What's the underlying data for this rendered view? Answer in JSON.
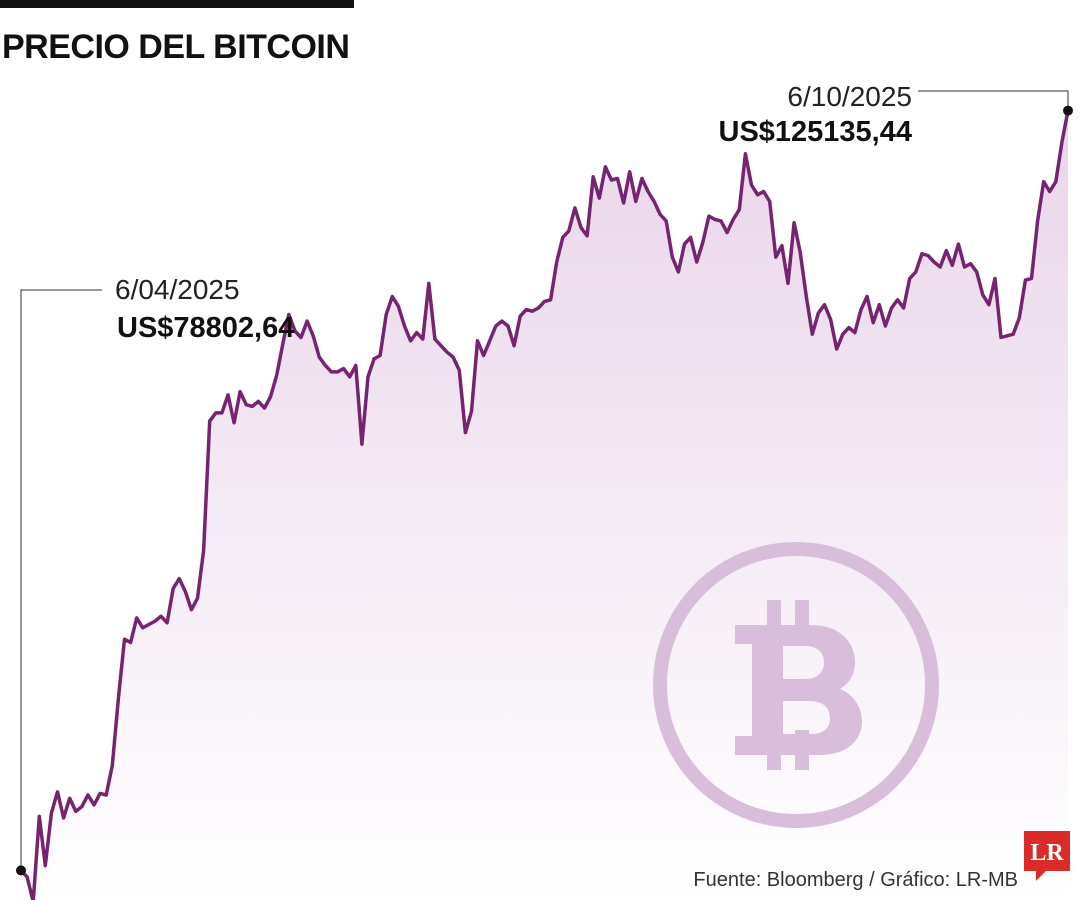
{
  "title": "PRECIO DEL BITCOIN",
  "source": "Fuente: Bloomberg / Gráfico: LR-MB",
  "logo_text": "LR",
  "colors": {
    "line": "#76246f",
    "area_top": "#e9d5ea",
    "area_bottom": "#ffffff",
    "bitcoin_logo": "#d9bedc",
    "logo_red": "#d92b27"
  },
  "annotations": {
    "start": {
      "date": "6/04/2025",
      "value": "US$78802,64"
    },
    "end": {
      "date": "6/10/2025",
      "value": "US$125135,44"
    }
  },
  "chart_data": {
    "type": "area",
    "title": "PRECIO DEL BITCOIN",
    "xlabel": "",
    "ylabel": "",
    "x_range": [
      "6/04/2025",
      "6/10/2025"
    ],
    "ylim": [
      77000,
      127000
    ],
    "grid": false,
    "series": [
      {
        "values": [
          78802.64,
          78400,
          76900,
          82100,
          79100,
          82300,
          83600,
          82000,
          83200,
          82400,
          82700,
          83400,
          82800,
          83500,
          83400,
          85200,
          89300,
          92900,
          92700,
          94200,
          93600,
          93800,
          94000,
          94300,
          93900,
          96000,
          96600,
          95800,
          94700,
          95400,
          98300,
          106200,
          106700,
          106700,
          107800,
          106100,
          108000,
          107200,
          107100,
          107400,
          107000,
          107700,
          109000,
          110900,
          112700,
          111700,
          111300,
          112300,
          111400,
          110100,
          109600,
          109200,
          109200,
          109400,
          108900,
          109600,
          104800,
          108900,
          110000,
          110200,
          112700,
          113800,
          113200,
          112000,
          111100,
          111600,
          111200,
          114600,
          111200,
          110800,
          110400,
          110100,
          109300,
          105500,
          106800,
          111100,
          110200,
          111100,
          112000,
          112300,
          112000,
          110800,
          112600,
          113000,
          112900,
          113100,
          113500,
          113600,
          115900,
          117400,
          117800,
          119200,
          118000,
          117500,
          121100,
          119800,
          121700,
          120900,
          121000,
          119500,
          121400,
          119600,
          121000,
          120200,
          119600,
          118800,
          118400,
          116200,
          115300,
          117000,
          117400,
          115900,
          117100,
          118700,
          118500,
          118400,
          117700,
          118500,
          119100,
          122500,
          120600,
          120000,
          120200,
          119600,
          116200,
          116900,
          114600,
          118300,
          116500,
          113800,
          111500,
          112800,
          113300,
          112400,
          110600,
          111500,
          111900,
          111600,
          113000,
          113800,
          112200,
          113300,
          112000,
          113100,
          113600,
          113100,
          114900,
          115300,
          116400,
          116300,
          115900,
          115600,
          116600,
          115700,
          117000,
          115600,
          115800,
          115300,
          113900,
          113300,
          114900,
          111300,
          111400,
          111500,
          112500,
          114800,
          114900,
          118400,
          120800,
          120200,
          120800,
          123200,
          125135.44
        ]
      }
    ]
  }
}
